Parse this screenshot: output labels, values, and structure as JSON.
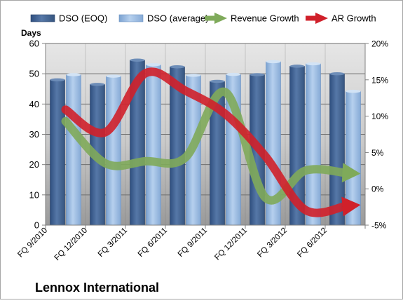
{
  "chart_data": {
    "type": "bar",
    "company": "Lennox International",
    "y_left_label": "Days",
    "categories": [
      "FQ 9/2010",
      "FQ 12/2010",
      "FQ 3/2011",
      "FQ 6/2011",
      "FQ 9/2011",
      "FQ 12/2011",
      "FQ 3/2012",
      "FQ 6/2012"
    ],
    "series": [
      {
        "name": "DSO (EOQ)",
        "kind": "bar",
        "axis": "left",
        "values": [
          48,
          46.5,
          54.5,
          52.3,
          47.5,
          49.7,
          52.5,
          50
        ],
        "color": "#3f5f8f"
      },
      {
        "name": "DSO (average)",
        "kind": "bar",
        "axis": "left",
        "values": [
          49.7,
          49.2,
          53,
          49.5,
          49.8,
          54,
          53.3,
          44.2
        ],
        "color": "#8fb2dc"
      },
      {
        "name": "Revenue Growth",
        "kind": "line",
        "axis": "right",
        "values": [
          9.3,
          3.5,
          3.8,
          4.3,
          13.3,
          -1.2,
          2.5,
          2.2
        ],
        "color": "#7faa5a"
      },
      {
        "name": "AR Growth",
        "kind": "line",
        "axis": "right",
        "values": [
          10.9,
          7.8,
          15.9,
          13.5,
          10.3,
          4.5,
          -2.9,
          -2.4
        ],
        "color": "#d0202a"
      }
    ],
    "y_left": {
      "min": 0,
      "max": 60,
      "ticks": [
        "0",
        "10",
        "20",
        "30",
        "40",
        "50",
        "60"
      ]
    },
    "y_right": {
      "min": -5,
      "max": 20,
      "ticks": [
        "-5%",
        "0%",
        "5%",
        "10%",
        "15%",
        "20%"
      ]
    },
    "legend_position": "top",
    "grid": true
  }
}
